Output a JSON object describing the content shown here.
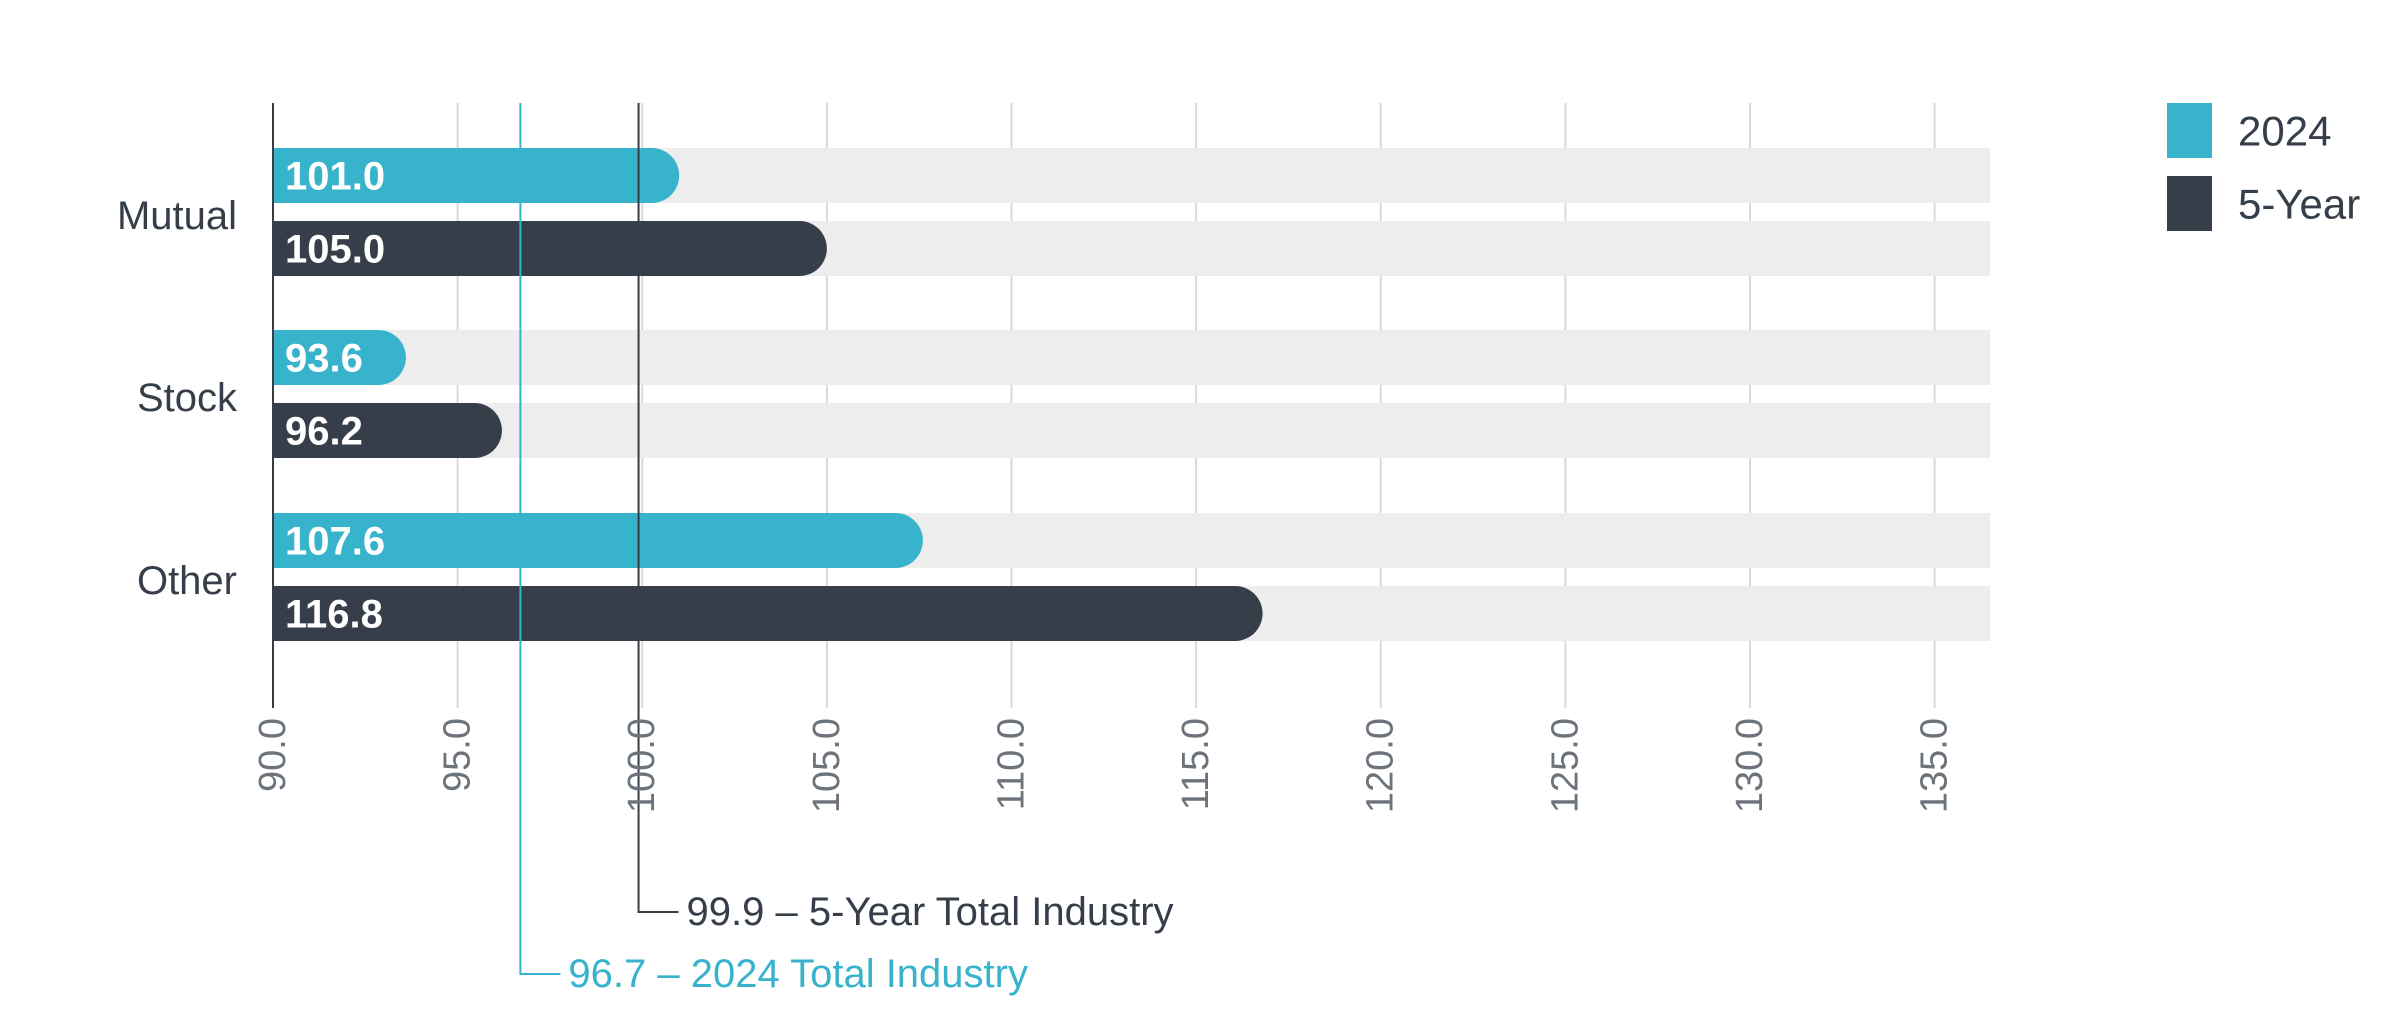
{
  "chart_data": {
    "type": "bar",
    "orientation": "horizontal",
    "categories": [
      "Mutual",
      "Stock",
      "Other"
    ],
    "series": [
      {
        "name": "2024",
        "color": "#37b3cb",
        "values": [
          101.0,
          93.6,
          107.6
        ]
      },
      {
        "name": "5-Year",
        "color": "#353e49",
        "values": [
          105.0,
          96.2,
          116.8
        ]
      }
    ],
    "value_labels": [
      [
        "101.0",
        "93.6",
        "107.6"
      ],
      [
        "105.0",
        "96.2",
        "116.8"
      ]
    ],
    "xlim": [
      90,
      136.5
    ],
    "xticks": [
      90,
      95,
      100,
      105,
      110,
      115,
      120,
      125,
      130,
      135
    ],
    "xtick_labels": [
      "90.0",
      "95.0",
      "100.0",
      "105.0",
      "110.0",
      "115.0",
      "120.0",
      "125.0",
      "130.0",
      "135.0"
    ],
    "reference_lines": [
      {
        "value": 99.9,
        "label": "99.9 – 5-Year Total Industry",
        "color": "#353e49"
      },
      {
        "value": 96.7,
        "label": "96.7 – 2024 Total Industry",
        "color": "#37b3cb"
      }
    ],
    "grid": true,
    "track_color": "#ededed",
    "legend_position": "top-right",
    "title": "",
    "xlabel": "",
    "ylabel": ""
  }
}
